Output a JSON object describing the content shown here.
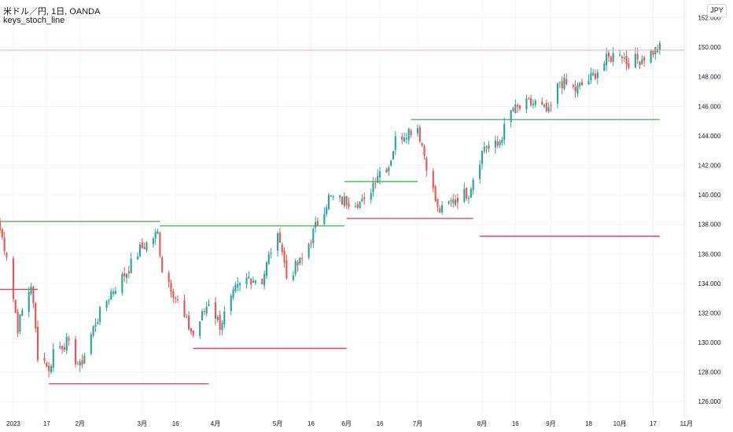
{
  "header": {
    "symbol": "米ドル／円, 1日, OANDA",
    "indicator": "keys_stoch_line",
    "currency_button": "JPY"
  },
  "colors": {
    "up": "#26a69a",
    "down": "#ef5350",
    "resistance": "#4caf50",
    "support": "#f23645",
    "last_price_line": "#f7a9a7",
    "grid": "#f0f3fa"
  },
  "chart_data": {
    "type": "candlestick",
    "title": "米ドル／円, 1日, OANDA",
    "x_range": [
      "2022-12-27",
      "2023-10-31"
    ],
    "ylim": [
      125,
      153.2
    ],
    "grid": true,
    "legend": "none",
    "y_ticks": [
      "126.000",
      "128.000",
      "130.000",
      "132.000",
      "134.000",
      "136.000",
      "138.000",
      "140.000",
      "142.000",
      "144.000",
      "146.000",
      "148.000",
      "150.000",
      "152.000"
    ],
    "x_ticks": [
      {
        "date": "2023-01-02",
        "label": "2023"
      },
      {
        "date": "2023-01-17",
        "label": "17"
      },
      {
        "date": "2023-02-01",
        "label": "2月"
      },
      {
        "date": "2023-03-01",
        "label": "3月"
      },
      {
        "date": "2023-03-16",
        "label": "16"
      },
      {
        "date": "2023-04-03",
        "label": "4月"
      },
      {
        "date": "2023-05-01",
        "label": "5月"
      },
      {
        "date": "2023-05-16",
        "label": "16"
      },
      {
        "date": "2023-06-01",
        "label": "6月"
      },
      {
        "date": "2023-06-16",
        "label": "16"
      },
      {
        "date": "2023-07-03",
        "label": "7月"
      },
      {
        "date": "2023-08-01",
        "label": "8月"
      },
      {
        "date": "2023-08-16",
        "label": "16"
      },
      {
        "date": "2023-09-01",
        "label": "9月"
      },
      {
        "date": "2023-09-18",
        "label": "18"
      },
      {
        "date": "2023-10-02",
        "label": "10月"
      },
      {
        "date": "2023-10-17",
        "label": "17"
      },
      {
        "date": "2023-11-01",
        "label": "11月"
      }
    ],
    "close_anchors": [
      [
        "2022-12-27",
        137.6
      ],
      [
        "2022-12-30",
        136.0
      ],
      [
        "2023-01-04",
        131.0
      ],
      [
        "2023-01-06",
        132.1
      ],
      [
        "2023-01-10",
        134.0
      ],
      [
        "2023-01-13",
        129.2
      ],
      [
        "2023-01-17",
        128.6
      ],
      [
        "2023-01-18",
        127.9
      ],
      [
        "2023-01-20",
        129.5
      ],
      [
        "2023-01-26",
        130.0
      ],
      [
        "2023-02-01",
        128.3
      ],
      [
        "2023-02-08",
        131.4
      ],
      [
        "2023-02-15",
        133.4
      ],
      [
        "2023-02-22",
        134.8
      ],
      [
        "2023-02-28",
        136.3
      ],
      [
        "2023-03-03",
        136.7
      ],
      [
        "2023-03-08",
        137.4
      ],
      [
        "2023-03-10",
        135.0
      ],
      [
        "2023-03-14",
        133.8
      ],
      [
        "2023-03-20",
        131.6
      ],
      [
        "2023-03-24",
        130.5
      ],
      [
        "2023-03-31",
        132.8
      ],
      [
        "2023-04-05",
        131.2
      ],
      [
        "2023-04-12",
        133.5
      ],
      [
        "2023-04-18",
        134.4
      ],
      [
        "2023-04-24",
        134.2
      ],
      [
        "2023-04-28",
        136.3
      ],
      [
        "2023-05-02",
        137.2
      ],
      [
        "2023-05-05",
        134.4
      ],
      [
        "2023-05-12",
        135.6
      ],
      [
        "2023-05-18",
        137.8
      ],
      [
        "2023-05-24",
        139.8
      ],
      [
        "2023-05-30",
        139.6
      ],
      [
        "2023-06-05",
        139.6
      ],
      [
        "2023-06-09",
        139.4
      ],
      [
        "2023-06-15",
        141.5
      ],
      [
        "2023-06-20",
        142.0
      ],
      [
        "2023-06-23",
        143.7
      ],
      [
        "2023-06-28",
        144.3
      ],
      [
        "2023-07-03",
        144.6
      ],
      [
        "2023-07-07",
        142.1
      ],
      [
        "2023-07-12",
        139.0
      ],
      [
        "2023-07-14",
        138.9
      ],
      [
        "2023-07-20",
        139.8
      ],
      [
        "2023-07-26",
        140.2
      ],
      [
        "2023-07-28",
        141.2
      ],
      [
        "2023-08-02",
        143.3
      ],
      [
        "2023-08-08",
        143.3
      ],
      [
        "2023-08-14",
        145.6
      ],
      [
        "2023-08-21",
        146.1
      ],
      [
        "2023-08-25",
        146.2
      ],
      [
        "2023-08-31",
        145.5
      ],
      [
        "2023-09-05",
        147.7
      ],
      [
        "2023-09-12",
        147.1
      ],
      [
        "2023-09-19",
        147.9
      ],
      [
        "2023-09-26",
        149.1
      ],
      [
        "2023-10-02",
        149.8
      ],
      [
        "2023-10-05",
        149.0
      ],
      [
        "2023-10-11",
        149.2
      ],
      [
        "2023-10-18",
        149.8
      ],
      [
        "2023-10-20",
        149.9
      ]
    ],
    "level_lines": [
      {
        "kind": "resistance",
        "start": "2022-12-27",
        "end": "2023-03-09",
        "price": 138.2
      },
      {
        "kind": "support",
        "start": "2022-12-27",
        "end": "2023-01-13",
        "price": 133.6
      },
      {
        "kind": "support",
        "start": "2023-01-18",
        "end": "2023-03-31",
        "price": 127.2
      },
      {
        "kind": "resistance",
        "start": "2023-03-09",
        "end": "2023-05-31",
        "price": 137.9
      },
      {
        "kind": "support",
        "start": "2023-03-24",
        "end": "2023-06-01",
        "price": 129.6
      },
      {
        "kind": "resistance",
        "start": "2023-05-31",
        "end": "2023-07-03",
        "price": 140.9
      },
      {
        "kind": "support",
        "start": "2023-06-01",
        "end": "2023-07-28",
        "price": 138.4
      },
      {
        "kind": "resistance",
        "start": "2023-06-30",
        "end": "2023-10-20",
        "price": 145.1
      },
      {
        "kind": "support",
        "start": "2023-07-31",
        "end": "2023-10-20",
        "price": 137.2
      }
    ],
    "last_price": 149.8
  }
}
